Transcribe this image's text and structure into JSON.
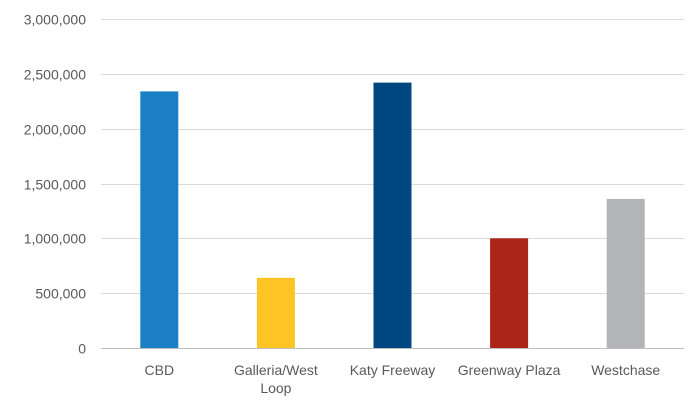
{
  "chart_data": {
    "type": "bar",
    "title": "",
    "xlabel": "",
    "ylabel": "",
    "categories": [
      "CBD",
      "Galleria/West Loop",
      "Katy Freeway",
      "Greenway Plaza",
      "Westchase"
    ],
    "category_lines": [
      [
        "CBD"
      ],
      [
        "Galleria/West",
        "Loop"
      ],
      [
        "Katy Freeway"
      ],
      [
        "Greenway Plaza"
      ],
      [
        "Westchase"
      ]
    ],
    "values": [
      2340000,
      640000,
      2420000,
      1000000,
      1360000
    ],
    "colors": [
      "#1a7fc5",
      "#fdc424",
      "#00467f",
      "#ad2518",
      "#b3b4b8"
    ],
    "ylim": [
      0,
      3000000
    ],
    "yticks": [
      0,
      500000,
      1000000,
      1500000,
      2000000,
      2500000,
      3000000
    ],
    "ytick_labels": [
      "0",
      "500,000",
      "1,000,000",
      "1,500,000",
      "2,000,000",
      "2,500,000",
      "3,000,000"
    ],
    "grid": true,
    "legend": "none"
  }
}
